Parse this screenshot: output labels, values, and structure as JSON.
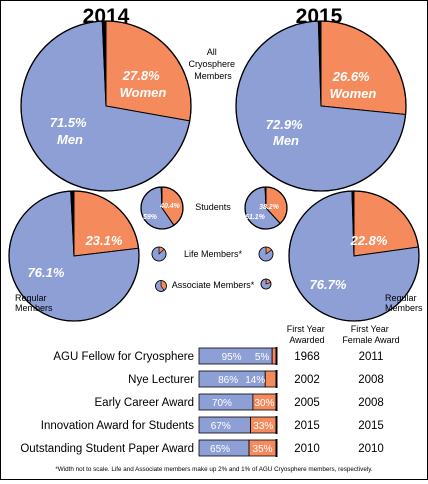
{
  "colors": {
    "men": "#8e9fd6",
    "women": "#f58a5c",
    "stroke": "#000000"
  },
  "chart_data": [
    {
      "type": "pie",
      "group": "All Cryosphere Members",
      "year": "2014",
      "slices": [
        {
          "name": "Men",
          "value": 71.5
        },
        {
          "name": "Women",
          "value": 27.8
        },
        {
          "name": "Other",
          "value": 0.7
        }
      ]
    },
    {
      "type": "pie",
      "group": "All Cryosphere Members",
      "year": "2015",
      "slices": [
        {
          "name": "Men",
          "value": 72.9
        },
        {
          "name": "Women",
          "value": 26.6
        },
        {
          "name": "Other",
          "value": 0.5
        }
      ]
    },
    {
      "type": "pie",
      "group": "Regular Members",
      "year": "2014",
      "slices": [
        {
          "name": "Men",
          "value": 76.1
        },
        {
          "name": "Women",
          "value": 23.1
        },
        {
          "name": "Other",
          "value": 0.8
        }
      ]
    },
    {
      "type": "pie",
      "group": "Regular Members",
      "year": "2015",
      "slices": [
        {
          "name": "Men",
          "value": 76.7
        },
        {
          "name": "Women",
          "value": 22.8
        },
        {
          "name": "Other",
          "value": 0.5
        }
      ]
    },
    {
      "type": "pie",
      "group": "Students",
      "year": "2014",
      "slices": [
        {
          "name": "Men",
          "value": 59
        },
        {
          "name": "Women",
          "value": 40.4
        },
        {
          "name": "Other",
          "value": 0.6
        }
      ]
    },
    {
      "type": "pie",
      "group": "Students",
      "year": "2015",
      "slices": [
        {
          "name": "Men",
          "value": 61.1
        },
        {
          "name": "Women",
          "value": 38.2
        },
        {
          "name": "Other",
          "value": 0.7
        }
      ]
    },
    {
      "type": "pie",
      "group": "Life Members*",
      "year": "2014",
      "slices": [
        {
          "name": "Men",
          "value": 87
        },
        {
          "name": "Women",
          "value": 13
        }
      ]
    },
    {
      "type": "pie",
      "group": "Life Members*",
      "year": "2015",
      "slices": [
        {
          "name": "Men",
          "value": 85
        },
        {
          "name": "Women",
          "value": 15
        }
      ]
    },
    {
      "type": "pie",
      "group": "Associate Members*",
      "year": "2014",
      "slices": [
        {
          "name": "Men",
          "value": 60
        },
        {
          "name": "Women",
          "value": 40
        }
      ]
    },
    {
      "type": "pie",
      "group": "Associate Members*",
      "year": "2015",
      "slices": [
        {
          "name": "Men",
          "value": 80
        },
        {
          "name": "Women",
          "value": 20
        }
      ]
    },
    {
      "type": "bar",
      "orientation": "horizontal",
      "stacked": true,
      "categories": [
        "AGU Fellow for Cryosphere",
        "Nye Lecturer",
        "Early Career Award",
        "Innovation Award for Students",
        "Outstanding Student Paper Award"
      ],
      "series": [
        {
          "name": "Men",
          "values": [
            95,
            86,
            70,
            67,
            65
          ],
          "labels": [
            "95%",
            "86%",
            "70%",
            "67%",
            "65%"
          ]
        },
        {
          "name": "Women",
          "values": [
            5,
            14,
            30,
            33,
            35
          ],
          "labels": [
            "5%",
            "14%",
            "30%",
            "33%",
            "35%"
          ]
        }
      ],
      "first_year_awarded": [
        "1968",
        "2002",
        "2005",
        "2015",
        "2010"
      ],
      "first_year_female_award": [
        "2011",
        "2008",
        "2008",
        "2015",
        "2010"
      ],
      "xlim": [
        0,
        100
      ]
    }
  ],
  "labels": {
    "year_2014": "2014",
    "year_2015": "2015",
    "all_members": [
      "All",
      "Cryosphere",
      "Members"
    ],
    "students": "Students",
    "life_members": "Life Members*",
    "associate_members": "Associate Members*",
    "regular_members_left": [
      "Regular",
      "Members"
    ],
    "regular_members_right": [
      "Regular",
      "Members"
    ],
    "all_2014_women": [
      "27.8%",
      "Women"
    ],
    "all_2014_men": [
      "71.5%",
      "Men"
    ],
    "all_2015_women": [
      "26.6%",
      "Women"
    ],
    "all_2015_men": [
      "72.9%",
      "Men"
    ],
    "reg_2014_women": "23.1%",
    "reg_2014_men": "76.1%",
    "reg_2015_women": "22.8%",
    "reg_2015_men": "76.7%",
    "stu_2014_women": "40.4%",
    "stu_2014_men": "59%",
    "stu_2015_women": "38.2%",
    "stu_2015_men": "61.1%",
    "col_first_year_awarded": [
      "First Year",
      "Awarded"
    ],
    "col_first_year_female": [
      "First Year",
      "Female Award"
    ],
    "footnote": "*Width not to scale. Life and Associate members make up 2% and 1% of AGU Cryosphere members, respectively."
  }
}
